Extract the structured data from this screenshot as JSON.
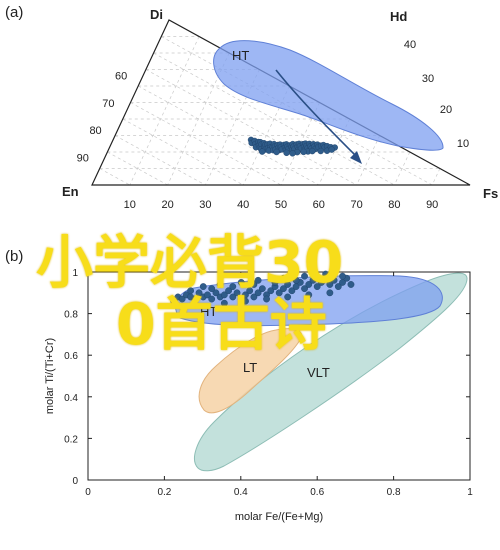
{
  "chart_data": [
    {
      "panel_label": "(a)",
      "type": "ternary",
      "vertices": {
        "top": "Di",
        "left": "En",
        "right": "Fs"
      },
      "grid_step": 10,
      "right_edge_ticks": [
        10,
        20,
        30,
        40
      ],
      "right_edge_label": "Hd",
      "left_edge_ticks": [
        60,
        70,
        80,
        90
      ],
      "bottom_ticks": [
        10,
        20,
        30,
        40,
        50,
        60,
        70,
        80,
        90
      ],
      "fields": [
        {
          "label": "HT",
          "color": "#7e9ff0"
        }
      ],
      "arrow": "trend from HT field toward Fs",
      "point_color": "#2f5c8a",
      "points_en_fs": [
        [
          0.3,
          0.47
        ],
        [
          0.31,
          0.5
        ],
        [
          0.32,
          0.46
        ],
        [
          0.33,
          0.49
        ],
        [
          0.34,
          0.45
        ],
        [
          0.34,
          0.52
        ],
        [
          0.35,
          0.48
        ],
        [
          0.35,
          0.44
        ],
        [
          0.36,
          0.5
        ],
        [
          0.36,
          0.46
        ],
        [
          0.37,
          0.43
        ],
        [
          0.37,
          0.51
        ],
        [
          0.38,
          0.47
        ],
        [
          0.38,
          0.44
        ],
        [
          0.39,
          0.49
        ],
        [
          0.39,
          0.42
        ],
        [
          0.4,
          0.46
        ],
        [
          0.4,
          0.4
        ],
        [
          0.41,
          0.44
        ],
        [
          0.41,
          0.48
        ],
        [
          0.42,
          0.42
        ],
        [
          0.42,
          0.38
        ],
        [
          0.43,
          0.45
        ],
        [
          0.43,
          0.4
        ],
        [
          0.44,
          0.37
        ],
        [
          0.44,
          0.43
        ],
        [
          0.45,
          0.39
        ],
        [
          0.45,
          0.35
        ],
        [
          0.46,
          0.41
        ],
        [
          0.46,
          0.37
        ],
        [
          0.47,
          0.33
        ],
        [
          0.47,
          0.39
        ],
        [
          0.48,
          0.35
        ],
        [
          0.48,
          0.31
        ],
        [
          0.49,
          0.37
        ],
        [
          0.49,
          0.33
        ],
        [
          0.5,
          0.3
        ],
        [
          0.5,
          0.35
        ],
        [
          0.51,
          0.31
        ],
        [
          0.51,
          0.27
        ],
        [
          0.52,
          0.33
        ],
        [
          0.52,
          0.29
        ],
        [
          0.53,
          0.25
        ],
        [
          0.53,
          0.31
        ],
        [
          0.54,
          0.27
        ],
        [
          0.54,
          0.23
        ],
        [
          0.55,
          0.29
        ],
        [
          0.55,
          0.25
        ],
        [
          0.56,
          0.21
        ],
        [
          0.56,
          0.27
        ],
        [
          0.57,
          0.23
        ],
        [
          0.57,
          0.19
        ],
        [
          0.58,
          0.25
        ],
        [
          0.58,
          0.21
        ],
        [
          0.59,
          0.17
        ],
        [
          0.59,
          0.23
        ],
        [
          0.6,
          0.19
        ],
        [
          0.61,
          0.15
        ],
        [
          0.61,
          0.21
        ],
        [
          0.62,
          0.17
        ],
        [
          0.63,
          0.13
        ],
        [
          0.63,
          0.19
        ],
        [
          0.64,
          0.15
        ],
        [
          0.65,
          0.12
        ],
        [
          0.66,
          0.1
        ],
        [
          0.67,
          0.12
        ],
        [
          0.68,
          0.09
        ],
        [
          0.7,
          0.08
        ],
        [
          0.72,
          0.06
        ],
        [
          0.38,
          0.53
        ],
        [
          0.45,
          0.45
        ],
        [
          0.5,
          0.4
        ],
        [
          0.55,
          0.33
        ],
        [
          0.6,
          0.26
        ],
        [
          0.53,
          0.37
        ],
        [
          0.58,
          0.29
        ],
        [
          0.62,
          0.23
        ],
        [
          0.66,
          0.18
        ],
        [
          0.69,
          0.14
        ],
        [
          0.71,
          0.1
        ]
      ]
    },
    {
      "panel_label": "(b)",
      "type": "scatter",
      "xlabel": "molar Fe/(Fe+Mg)",
      "ylabel": "molar Ti/(Ti+Cr)",
      "xlim": [
        0,
        1
      ],
      "ylim": [
        0,
        1
      ],
      "x_ticks": [
        "0",
        "0.2",
        "0.4",
        "0.6",
        "0.8",
        "1"
      ],
      "y_ticks": [
        "0",
        "0.2",
        "0.4",
        "0.6",
        "0.8",
        "1"
      ],
      "fields": [
        {
          "label": "HT",
          "color": "#7e9ff0"
        },
        {
          "label": "LT",
          "color": "#f6d2a6"
        },
        {
          "label": "VLT",
          "color": "#b9dcd6"
        }
      ],
      "point_color": "#2f5c8a",
      "points": [
        [
          0.46,
          0.86
        ],
        [
          0.47,
          0.88
        ],
        [
          0.48,
          0.87
        ],
        [
          0.49,
          0.89
        ],
        [
          0.5,
          0.88
        ],
        [
          0.51,
          0.87
        ],
        [
          0.52,
          0.9
        ],
        [
          0.53,
          0.88
        ],
        [
          0.54,
          0.89
        ],
        [
          0.55,
          0.87
        ],
        [
          0.56,
          0.9
        ],
        [
          0.57,
          0.88
        ],
        [
          0.58,
          0.89
        ],
        [
          0.59,
          0.91
        ],
        [
          0.6,
          0.88
        ],
        [
          0.61,
          0.9
        ],
        [
          0.62,
          0.87
        ],
        [
          0.63,
          0.89
        ],
        [
          0.64,
          0.91
        ],
        [
          0.65,
          0.88
        ],
        [
          0.66,
          0.9
        ],
        [
          0.67,
          0.92
        ],
        [
          0.68,
          0.89
        ],
        [
          0.69,
          0.91
        ],
        [
          0.7,
          0.93
        ],
        [
          0.71,
          0.9
        ],
        [
          0.72,
          0.92
        ],
        [
          0.73,
          0.94
        ],
        [
          0.74,
          0.91
        ],
        [
          0.75,
          0.93
        ],
        [
          0.76,
          0.95
        ],
        [
          0.77,
          0.92
        ],
        [
          0.78,
          0.94
        ],
        [
          0.79,
          0.96
        ],
        [
          0.8,
          0.93
        ],
        [
          0.81,
          0.95
        ],
        [
          0.82,
          0.97
        ],
        [
          0.83,
          0.94
        ],
        [
          0.84,
          0.96
        ],
        [
          0.85,
          0.93
        ],
        [
          0.86,
          0.95
        ],
        [
          0.87,
          0.97
        ],
        [
          0.88,
          0.94
        ],
        [
          0.55,
          0.92
        ],
        [
          0.6,
          0.93
        ],
        [
          0.65,
          0.94
        ],
        [
          0.7,
          0.95
        ],
        [
          0.75,
          0.96
        ],
        [
          0.8,
          0.97
        ],
        [
          0.5,
          0.91
        ],
        [
          0.58,
          0.85
        ],
        [
          0.63,
          0.86
        ],
        [
          0.68,
          0.87
        ],
        [
          0.73,
          0.88
        ],
        [
          0.78,
          0.89
        ],
        [
          0.83,
          0.9
        ],
        [
          0.72,
          0.97
        ],
        [
          0.77,
          0.98
        ],
        [
          0.82,
          0.99
        ],
        [
          0.86,
          0.98
        ],
        [
          0.66,
          0.96
        ],
        [
          0.62,
          0.95
        ],
        [
          0.57,
          0.94
        ],
        [
          0.53,
          0.93
        ]
      ]
    }
  ],
  "watermark": {
    "line1": "小学必背30",
    "line2": "0首古诗",
    "color": "#f7dd1a"
  }
}
